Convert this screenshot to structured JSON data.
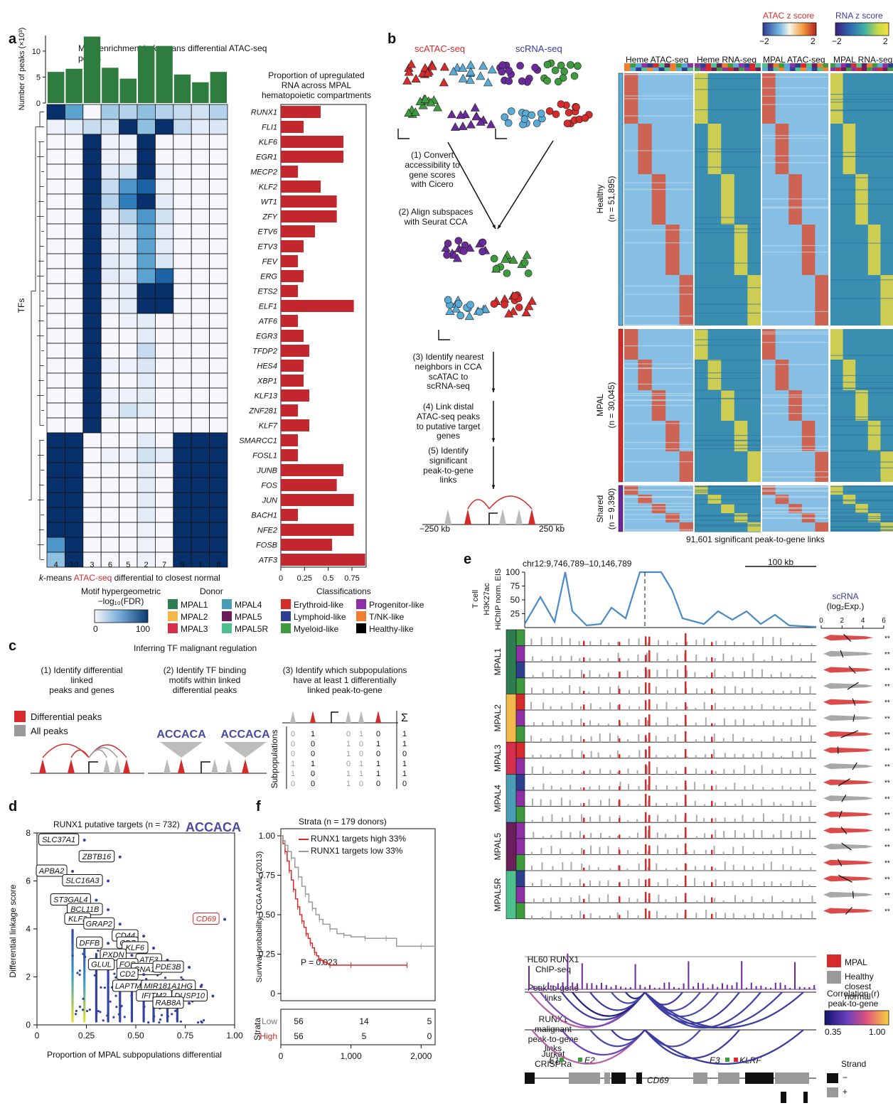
{
  "panel_a": {
    "letter": "a",
    "title_pre": "Motif enrichment in ",
    "title_k": "k",
    "title_post": "-means differential ATAC-seq peaks",
    "bar_ylabel": "Number of peaks (×10³)",
    "heatmap_ylabel": "TFs",
    "xlabel_k": "k",
    "xlabel_pre": "-means ",
    "xlabel_atac": "ATAC-seq",
    "xlabel_post": " differential to closest normal",
    "right_title_1": "Proportion of upregulated",
    "right_title_2": "RNA across MPAL",
    "right_title_3": "hematopoietic compartments",
    "legend_title_1": "Motif hypergeometric",
    "legend_title_2": "−log₁₀(FDR)",
    "legend_min": "0",
    "legend_max": "100",
    "donor_title": "Donor",
    "donors": [
      {
        "label": "MPAL1",
        "color": "#2e7d52"
      },
      {
        "label": "MPAL2",
        "color": "#f2b84b"
      },
      {
        "label": "MPAL3",
        "color": "#d62f4b"
      },
      {
        "label": "MPAL4",
        "color": "#4a9bb4"
      },
      {
        "label": "MPAL5",
        "color": "#6a1f5a"
      },
      {
        "label": "MPAL5R",
        "color": "#4fc08d"
      }
    ],
    "class_title": "Classifications",
    "classes": [
      {
        "label": "Erythroid-like",
        "color": "#d62b2b"
      },
      {
        "label": "Lymphoid-like",
        "color": "#2f3f8f"
      },
      {
        "label": "Myeloid-like",
        "color": "#3d9b3d"
      },
      {
        "label": "Progenitor-like",
        "color": "#8e2fa6"
      },
      {
        "label": "T/NK-like",
        "color": "#ef7f2e"
      },
      {
        "label": "Healthy-like",
        "color": "#000000"
      }
    ]
  },
  "panel_b": {
    "letter": "b",
    "scatac": "scATAC-seq",
    "scrna": "scRNA-seq",
    "step1": [
      "(1) Convert",
      "accessibility to",
      "gene scores",
      "with Cicero"
    ],
    "step2": [
      "(2) Align subspaces",
      "with Seurat CCA"
    ],
    "step3": [
      "(3) Identify nearest",
      "neighbors in CCA",
      "scATAC to",
      "scRNA-seq"
    ],
    "step4": [
      "(4) Link distal",
      "ATAC-seq peaks",
      "to putative target",
      "genes"
    ],
    "step5": [
      "(5) Identify",
      "significant",
      "peak-to-gene",
      "links"
    ],
    "left_kb": "−250 kb",
    "right_kb": "250 kb",
    "atac_z": "ATAC z score",
    "rna_z": "RNA z score",
    "z_min": "−2",
    "z_max": "2",
    "col_heads": [
      "Heme ATAC-seq",
      "Heme RNA-seq",
      "MPAL ATAC-seq",
      "MPAL RNA-seq"
    ],
    "groups": [
      {
        "name": "Healthy",
        "n": "(n = 51,895)"
      },
      {
        "name": "MPAL",
        "n": "(n = 30,045)"
      },
      {
        "name": "Shared",
        "n": "(n = 9,390)"
      }
    ],
    "footer": "91,601 significant peak-to-gene links"
  },
  "panel_c": {
    "letter": "c",
    "title": "Inferring TF malignant regulation",
    "step1": [
      "(1) Identify differential",
      "linked",
      "peaks and genes"
    ],
    "step2": [
      "(2) Identify TF binding",
      "motifs within linked",
      "differential peaks"
    ],
    "step3": [
      "(3) Identify which subpopulations",
      "have at least 1 differentially",
      "linked peak-to-gene"
    ],
    "legend_diff": "Differential peaks",
    "legend_all": "All peaks",
    "subpop_label": "Subpopulations",
    "sigma": "Σ",
    "motif_text": "ACCACA",
    "matrix": [
      [
        "0",
        "1",
        "0",
        "1",
        "0",
        "1"
      ],
      [
        "0",
        "0",
        "1",
        "0",
        "1",
        "1"
      ],
      [
        "0",
        "0",
        "1",
        "0",
        "0",
        "0"
      ],
      [
        "1",
        "1",
        "0",
        "1",
        "1",
        "1"
      ],
      [
        "1",
        "0",
        "1",
        "1",
        "1",
        "1"
      ],
      [
        "0",
        "0",
        "1",
        "0",
        "0",
        "0"
      ]
    ]
  },
  "panel_d": {
    "letter": "d",
    "title": "RUNX1 putative targets (n = 732)",
    "ylabel": "Differential linkage score",
    "xlabel": "Proportion of MPAL subpopulations differential",
    "motif_text": "ACCACA"
  },
  "panel_e": {
    "letter": "e",
    "region": "chr12:9,746,789–10,146,789",
    "scale": "100 kb",
    "track_label": [
      "T cell",
      "H3K27ac",
      "HiChIP norm. EIS"
    ],
    "hichip_ticks": [
      "100",
      "75",
      "50",
      "25"
    ],
    "donors": [
      "MPAL1",
      "MPAL2",
      "MPAL3",
      "MPAL4",
      "MPAL5",
      "MPAL5R"
    ],
    "scrna_title": "scRNA",
    "scrna_sub": "(log₂Exp.)",
    "scrna_ticks": [
      "0",
      "2",
      "4",
      "6"
    ],
    "legend_mpal": "MPAL",
    "legend_healthy": [
      "Healthy",
      "closest",
      "normal"
    ],
    "chip_label": [
      "HL60 RUNX1",
      "ChIP-seq"
    ],
    "p2g_label": [
      "Peak-to-gene",
      "links"
    ],
    "mal_label": [
      "RUNX1",
      "malignant",
      "peak-to-gene",
      "links"
    ],
    "crispr_label": [
      "Jurkat",
      "CRISPRa"
    ],
    "corr_title": [
      "Correlation (r)",
      "peak-to-gene"
    ],
    "corr_min": "0.35",
    "corr_max": "1.00",
    "strand_title": "Strand",
    "strand_minus": "−",
    "strand_plus": "+",
    "elements": [
      "E1",
      "E2",
      "E3",
      "KLRF"
    ],
    "gene": "CD69",
    "sig": "**"
  },
  "panel_f": {
    "letter": "f",
    "title": "Strata (n = 179 donors)",
    "ylabel": "Survival probability TCGA AML (2013)",
    "legend_high": "RUNX1 targets high 33%",
    "legend_low": "RUNX1 targets low 33%",
    "pvalue": "P = 0.023",
    "strata_label": "Strata",
    "risk_low_label": "Low",
    "risk_high_label": "High",
    "risk_low": [
      "56",
      "14",
      "5"
    ],
    "risk_high": [
      "56",
      "5",
      "0"
    ]
  },
  "chart_data": [
    {
      "type": "bar",
      "id": "a-top-bars",
      "ylabel": "Number of peaks (×10³)",
      "categories": [
        "4",
        "10",
        "3",
        "6",
        "5",
        "2",
        "7",
        "9",
        "1",
        "8"
      ],
      "values": [
        6.0,
        6.6,
        12.8,
        6.8,
        4.7,
        11.0,
        11.0,
        5.5,
        4.0,
        6.0
      ],
      "ylim": [
        0,
        13
      ],
      "yticks": [
        "0",
        "5",
        "10"
      ]
    },
    {
      "type": "heatmap",
      "id": "a-motif-heatmap",
      "columns": [
        "4",
        "10",
        "3",
        "6",
        "5",
        "2",
        "7",
        "9",
        "1",
        "8"
      ],
      "rows": [
        "RUNX1",
        "FLI1",
        "KLF6",
        "EGR1",
        "MECP2",
        "KLF2",
        "WT1",
        "ZFY",
        "ETV6",
        "ETV3",
        "FEV",
        "ERG",
        "ETS2",
        "ELF1",
        "ATF6",
        "EGR3",
        "TFDP2",
        "HES4",
        "XBP1",
        "KLF13",
        "ZNF281",
        "KLF7",
        "SMARCC1",
        "FOSL1",
        "JUNB",
        "FOS",
        "JUN",
        "BACH1",
        "NFE2",
        "FOSB",
        "ATF3"
      ],
      "values": [
        [
          100,
          55,
          0,
          35,
          30,
          40,
          30,
          25,
          20,
          30
        ],
        [
          5,
          10,
          25,
          20,
          100,
          40,
          100,
          25,
          10,
          15
        ],
        [
          0,
          0,
          100,
          5,
          5,
          100,
          0,
          0,
          0,
          0
        ],
        [
          0,
          0,
          100,
          5,
          5,
          100,
          0,
          0,
          0,
          0
        ],
        [
          0,
          0,
          100,
          10,
          20,
          100,
          5,
          0,
          0,
          0
        ],
        [
          0,
          0,
          100,
          25,
          60,
          80,
          5,
          0,
          0,
          0
        ],
        [
          0,
          0,
          100,
          30,
          70,
          100,
          10,
          0,
          0,
          0
        ],
        [
          0,
          0,
          100,
          10,
          30,
          60,
          20,
          0,
          0,
          0
        ],
        [
          0,
          0,
          100,
          10,
          15,
          55,
          10,
          0,
          0,
          0
        ],
        [
          0,
          0,
          100,
          5,
          10,
          55,
          10,
          0,
          0,
          0
        ],
        [
          0,
          0,
          100,
          10,
          10,
          55,
          15,
          0,
          0,
          0
        ],
        [
          0,
          0,
          100,
          10,
          10,
          55,
          80,
          0,
          0,
          0
        ],
        [
          0,
          0,
          100,
          5,
          10,
          100,
          100,
          0,
          0,
          0
        ],
        [
          0,
          0,
          100,
          5,
          10,
          100,
          100,
          0,
          0,
          0
        ],
        [
          0,
          0,
          100,
          0,
          5,
          10,
          0,
          0,
          0,
          0
        ],
        [
          0,
          0,
          100,
          0,
          0,
          10,
          0,
          0,
          0,
          0
        ],
        [
          0,
          0,
          100,
          0,
          0,
          25,
          0,
          0,
          0,
          0
        ],
        [
          0,
          0,
          100,
          5,
          5,
          15,
          0,
          0,
          0,
          0
        ],
        [
          0,
          0,
          100,
          0,
          0,
          10,
          0,
          0,
          0,
          0
        ],
        [
          0,
          0,
          100,
          5,
          5,
          10,
          0,
          0,
          0,
          0
        ],
        [
          0,
          0,
          100,
          5,
          20,
          10,
          0,
          0,
          0,
          0
        ],
        [
          0,
          0,
          100,
          0,
          0,
          0,
          0,
          0,
          0,
          0
        ],
        [
          100,
          100,
          0,
          0,
          0,
          10,
          0,
          100,
          100,
          100
        ],
        [
          100,
          100,
          0,
          5,
          5,
          20,
          10,
          100,
          100,
          100
        ],
        [
          100,
          100,
          0,
          0,
          0,
          10,
          0,
          100,
          100,
          100
        ],
        [
          100,
          100,
          0,
          0,
          0,
          10,
          0,
          100,
          100,
          100
        ],
        [
          100,
          100,
          0,
          0,
          0,
          10,
          0,
          100,
          100,
          100
        ],
        [
          100,
          100,
          0,
          0,
          0,
          10,
          0,
          100,
          100,
          100
        ],
        [
          100,
          100,
          0,
          0,
          0,
          5,
          0,
          100,
          100,
          100
        ],
        [
          60,
          100,
          0,
          0,
          0,
          5,
          0,
          100,
          100,
          100
        ],
        [
          40,
          100,
          0,
          0,
          0,
          5,
          0,
          100,
          100,
          100
        ]
      ],
      "vmin": 0,
      "vmax": 100,
      "xlabel": "k-means ATAC-seq differential to closest normal",
      "ylabel": "TFs"
    },
    {
      "type": "bar",
      "id": "a-right-bars",
      "title": "Proportion of upregulated RNA across MPAL hematopoietic compartments",
      "categories": [
        "RUNX1",
        "FLI1",
        "KLF6",
        "EGR1",
        "MECP2",
        "KLF2",
        "WT1",
        "ZFY",
        "ETV6",
        "ETV3",
        "FEV",
        "ERG",
        "ETS2",
        "ELF1",
        "ATF6",
        "EGR3",
        "TFDP2",
        "HES4",
        "XBP1",
        "KLF13",
        "ZNF281",
        "KLF7",
        "SMARCC1",
        "FOSL1",
        "JUNB",
        "FOS",
        "JUN",
        "BACH1",
        "NFE2",
        "FOSB",
        "ATF3"
      ],
      "values": [
        0.42,
        0.24,
        0.66,
        0.66,
        0.18,
        0.42,
        0.59,
        0.59,
        0.36,
        0.24,
        0.18,
        0.24,
        0.18,
        0.77,
        0.18,
        0.24,
        0.3,
        0.24,
        0.24,
        0.3,
        0.18,
        0.3,
        0.18,
        0.18,
        0.66,
        0.59,
        0.77,
        0.18,
        0.77,
        0.54,
        0.89
      ],
      "xlim": [
        0,
        0.9
      ],
      "xticks": [
        "0",
        "0.25",
        "0.5",
        "0.75"
      ]
    },
    {
      "type": "scatter",
      "id": "d-scatter",
      "title": "RUNX1 putative targets (n = 732)",
      "xlabel": "Proportion of MPAL subpopulations differential",
      "ylabel": "Differential linkage score",
      "xlim": [
        0,
        1.0
      ],
      "ylim": [
        0,
        8
      ],
      "xticks": [
        "0",
        "0.25",
        "0.50",
        "0.75",
        "1.00"
      ],
      "yticks": [
        "0",
        "2",
        "4",
        "6",
        "8"
      ],
      "labeled_points": [
        {
          "label": "SLC37A1",
          "x": 0.24,
          "y": 7.7
        },
        {
          "label": "ZBTB16",
          "x": 0.42,
          "y": 7.0
        },
        {
          "label": "APBA2",
          "x": 0.18,
          "y": 6.4
        },
        {
          "label": "SLC16A3",
          "x": 0.36,
          "y": 6.0
        },
        {
          "label": "ST3GAL4",
          "x": 0.3,
          "y": 5.2
        },
        {
          "label": "BCL11B",
          "x": 0.36,
          "y": 4.8
        },
        {
          "label": "KLF2",
          "x": 0.3,
          "y": 4.4
        },
        {
          "label": "GRAP2",
          "x": 0.42,
          "y": 4.2
        },
        {
          "label": "CD69",
          "x": 0.95,
          "y": 4.4
        },
        {
          "label": "CD44",
          "x": 0.54,
          "y": 3.7
        },
        {
          "label": "DFFB",
          "x": 0.36,
          "y": 3.4
        },
        {
          "label": "CD7",
          "x": 0.54,
          "y": 3.4
        },
        {
          "label": "KLF6",
          "x": 0.59,
          "y": 3.2
        },
        {
          "label": "PXDN",
          "x": 0.48,
          "y": 2.9
        },
        {
          "label": "ATF3",
          "x": 0.66,
          "y": 2.7
        },
        {
          "label": "GLUL",
          "x": 0.42,
          "y": 2.5
        },
        {
          "label": "FOS",
          "x": 0.54,
          "y": 2.5
        },
        {
          "label": "GNA15",
          "x": 0.66,
          "y": 2.3
        },
        {
          "label": "PDE3B",
          "x": 0.77,
          "y": 2.4
        },
        {
          "label": "CD2",
          "x": 0.54,
          "y": 2.1
        },
        {
          "label": "LAPTM5",
          "x": 0.59,
          "y": 1.6
        },
        {
          "label": "MIR181A1HG",
          "x": 0.83,
          "y": 1.6
        },
        {
          "label": "IFITM2",
          "x": 0.71,
          "y": 1.2
        },
        {
          "label": "DUSP10",
          "x": 0.89,
          "y": 1.2
        },
        {
          "label": "RAB8A",
          "x": 0.77,
          "y": 0.9
        }
      ]
    },
    {
      "type": "line",
      "id": "f-km",
      "title": "Strata (n = 179 donors)",
      "ylabel": "Survival probability TCGA AML (2013)",
      "xlim": [
        0,
        2200
      ],
      "ylim": [
        0,
        1.0
      ],
      "xticks": [
        "0",
        "1,000",
        "2,000"
      ],
      "yticks": [
        "0",
        "0.25",
        "0.50",
        "0.75",
        "1.00"
      ],
      "series": [
        {
          "name": "RUNX1 targets high 33%",
          "color": "#d62b2b",
          "x": [
            0,
            30,
            60,
            90,
            120,
            150,
            180,
            210,
            240,
            270,
            300,
            330,
            360,
            390,
            420,
            450,
            480,
            510,
            540,
            570,
            600,
            650,
            700,
            800,
            1000,
            1400,
            1800
          ],
          "y": [
            1.0,
            0.95,
            0.9,
            0.84,
            0.78,
            0.72,
            0.66,
            0.6,
            0.55,
            0.5,
            0.46,
            0.42,
            0.38,
            0.35,
            0.32,
            0.29,
            0.26,
            0.24,
            0.22,
            0.21,
            0.2,
            0.19,
            0.18,
            0.18,
            0.18,
            0.18,
            0.18
          ]
        },
        {
          "name": "RUNX1 targets low 33%",
          "color": "#9a9a9a",
          "x": [
            0,
            30,
            60,
            100,
            150,
            200,
            250,
            300,
            350,
            400,
            450,
            500,
            550,
            600,
            700,
            800,
            900,
            1000,
            1200,
            1400,
            1500,
            1650,
            2000,
            2200
          ],
          "y": [
            1.0,
            0.97,
            0.94,
            0.9,
            0.86,
            0.8,
            0.74,
            0.68,
            0.63,
            0.58,
            0.54,
            0.5,
            0.47,
            0.44,
            0.41,
            0.38,
            0.37,
            0.36,
            0.35,
            0.35,
            0.35,
            0.3,
            0.3,
            0.3
          ]
        }
      ]
    },
    {
      "type": "line",
      "id": "e-hichip",
      "ylabel": "T cell H3K27ac HiChIP norm. EIS",
      "ylim": [
        0,
        100
      ],
      "yticks": [
        "25",
        "50",
        "75",
        "100"
      ]
    }
  ]
}
